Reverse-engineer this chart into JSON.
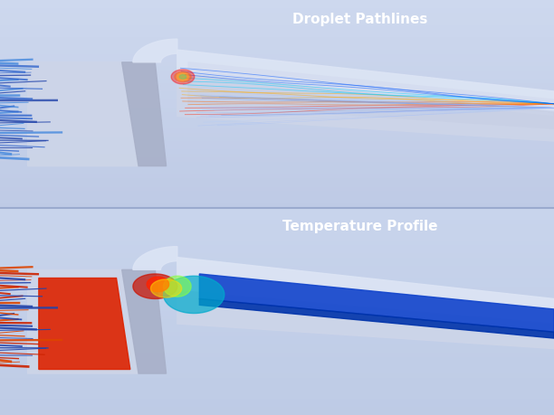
{
  "title_top": "Droplet Pathlines",
  "title_bottom": "Temperature Profile",
  "bg_color_top": "#b8c8e8",
  "bg_color_bottom": "#b8c8e8",
  "bg_gradient_top": "#c8d5ee",
  "bg_gradient_bottom": "#a8b8dc",
  "duct_fill": "#d0d8ec",
  "duct_edge": "#a0aac8",
  "duct_shadow": "#b0bcd8",
  "title_color": "#ffffff",
  "title_fontsize": 11,
  "fig_bg": "#b8c4e0",
  "divider_color": "#9aaace"
}
